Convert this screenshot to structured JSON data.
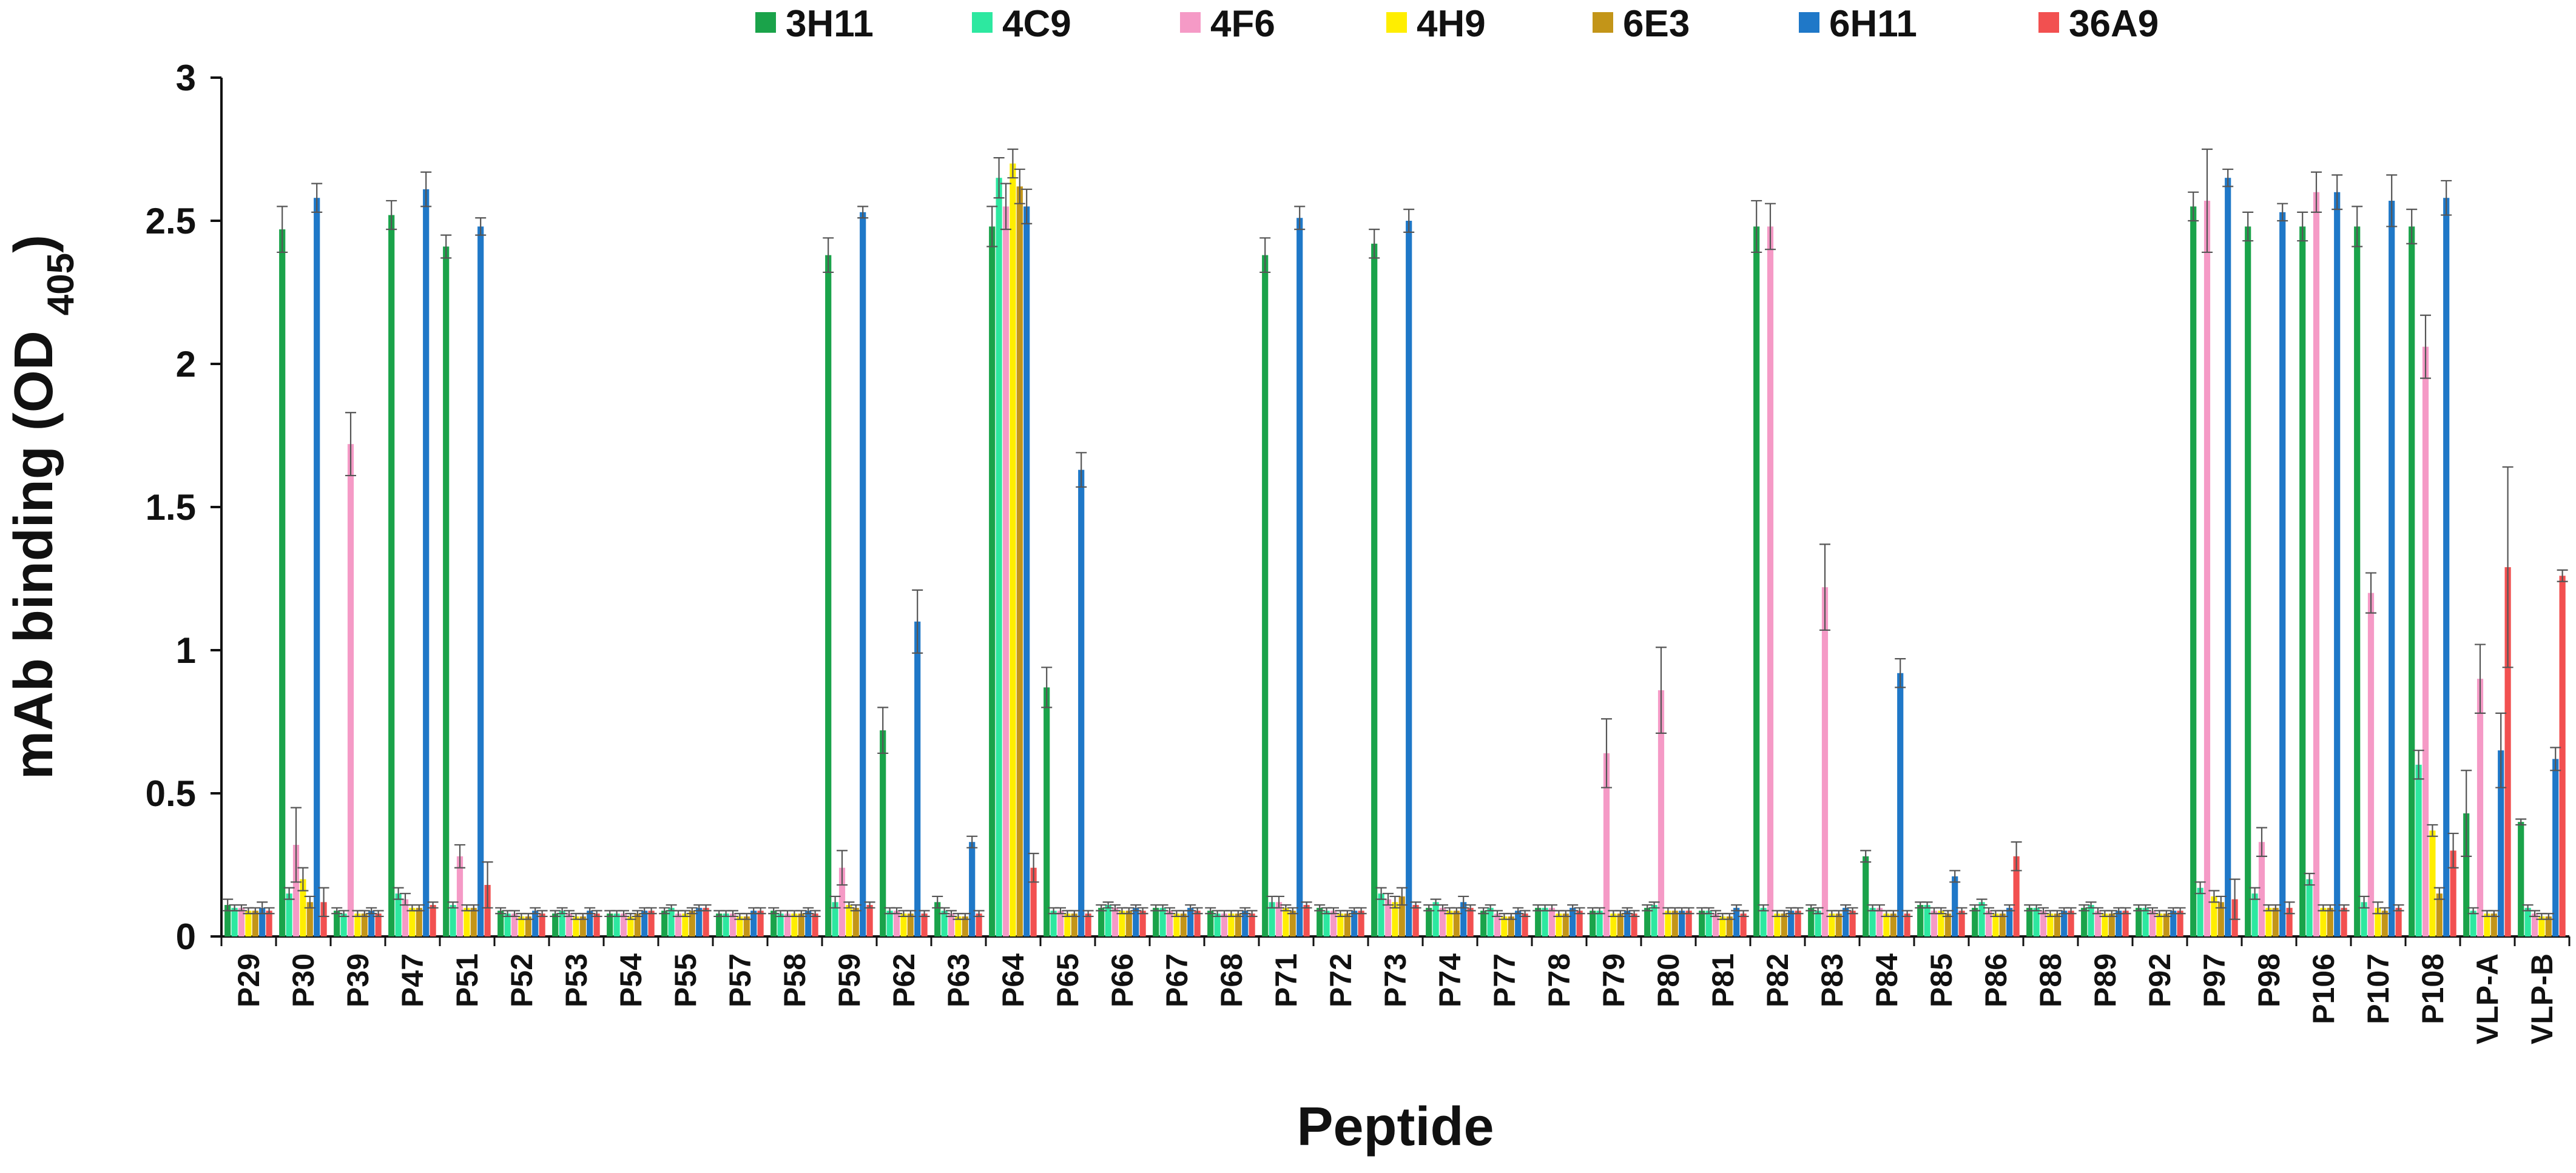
{
  "chart_data": {
    "type": "bar",
    "title": "",
    "xlabel": "Peptide",
    "ylabel": "mAb binding (OD 405)",
    "ylabel_main": "mAb binding (OD",
    "ylabel_sub": "405",
    "ylabel_close": ")",
    "ylim": [
      0,
      3
    ],
    "yticks": [
      0,
      0.5,
      1,
      1.5,
      2,
      2.5,
      3
    ],
    "ytick_labels": [
      "0",
      "0.5",
      "1",
      "1.5",
      "2",
      "2.5",
      "3"
    ],
    "grid": false,
    "legend_position": "top",
    "categories": [
      "P29",
      "P30",
      "P39",
      "P47",
      "P51",
      "P52",
      "P53",
      "P54",
      "P55",
      "P57",
      "P58",
      "P59",
      "P62",
      "P63",
      "P64",
      "P65",
      "P66",
      "P67",
      "P68",
      "P71",
      "P72",
      "P73",
      "P74",
      "P77",
      "P78",
      "P79",
      "P80",
      "P81",
      "P82",
      "P83",
      "P84",
      "P85",
      "P86",
      "P88",
      "P89",
      "P92",
      "P97",
      "P98",
      "P106",
      "P107",
      "P108",
      "VLP-A",
      "VLP-B"
    ],
    "series": [
      {
        "name": "3H11",
        "color": "#1aa34a",
        "values": [
          0.11,
          2.47,
          0.09,
          2.52,
          2.41,
          0.09,
          0.08,
          0.08,
          0.09,
          0.08,
          0.09,
          2.38,
          0.72,
          0.12,
          2.48,
          0.87,
          0.1,
          0.1,
          0.09,
          2.38,
          0.1,
          2.42,
          0.1,
          0.09,
          0.1,
          0.09,
          0.1,
          0.09,
          2.48,
          0.1,
          0.28,
          0.11,
          0.1,
          0.1,
          0.1,
          0.1,
          2.55,
          2.48,
          2.48,
          2.48,
          2.48,
          0.43,
          0.4
        ],
        "errors": [
          0.02,
          0.08,
          0.01,
          0.05,
          0.04,
          0.01,
          0.01,
          0.01,
          0.01,
          0.01,
          0.01,
          0.06,
          0.08,
          0.02,
          0.07,
          0.07,
          0.01,
          0.01,
          0.01,
          0.06,
          0.01,
          0.05,
          0.01,
          0.01,
          0.01,
          0.01,
          0.01,
          0.01,
          0.09,
          0.01,
          0.02,
          0.01,
          0.01,
          0.01,
          0.01,
          0.01,
          0.05,
          0.05,
          0.05,
          0.07,
          0.06,
          0.15,
          0.01
        ]
      },
      {
        "name": "4C9",
        "color": "#2de8a0",
        "values": [
          0.1,
          0.15,
          0.08,
          0.15,
          0.11,
          0.08,
          0.09,
          0.08,
          0.1,
          0.08,
          0.08,
          0.12,
          0.09,
          0.09,
          2.65,
          0.09,
          0.11,
          0.1,
          0.08,
          0.12,
          0.09,
          0.15,
          0.12,
          0.1,
          0.1,
          0.09,
          0.11,
          0.09,
          0.1,
          0.09,
          0.1,
          0.11,
          0.12,
          0.1,
          0.11,
          0.1,
          0.17,
          0.15,
          0.2,
          0.12,
          0.6,
          0.09,
          0.1
        ],
        "errors": [
          0.01,
          0.02,
          0.01,
          0.02,
          0.01,
          0.01,
          0.01,
          0.01,
          0.01,
          0.01,
          0.01,
          0.02,
          0.01,
          0.01,
          0.07,
          0.01,
          0.01,
          0.01,
          0.01,
          0.02,
          0.01,
          0.02,
          0.01,
          0.01,
          0.01,
          0.01,
          0.01,
          0.01,
          0.01,
          0.01,
          0.01,
          0.01,
          0.01,
          0.01,
          0.01,
          0.01,
          0.02,
          0.02,
          0.02,
          0.02,
          0.05,
          0.01,
          0.01
        ]
      },
      {
        "name": "4F6",
        "color": "#f59ac6",
        "values": [
          0.1,
          0.32,
          1.72,
          0.13,
          0.28,
          0.08,
          0.08,
          0.08,
          0.08,
          0.08,
          0.08,
          0.24,
          0.09,
          0.08,
          2.55,
          0.09,
          0.1,
          0.09,
          0.08,
          0.12,
          0.09,
          0.13,
          0.1,
          0.08,
          0.1,
          0.64,
          0.86,
          0.08,
          2.48,
          1.22,
          0.1,
          0.09,
          0.09,
          0.09,
          0.09,
          0.09,
          2.57,
          0.33,
          2.6,
          1.2,
          2.06,
          0.9,
          0.08
        ],
        "errors": [
          0.01,
          0.13,
          0.11,
          0.02,
          0.04,
          0.01,
          0.01,
          0.01,
          0.01,
          0.01,
          0.01,
          0.06,
          0.01,
          0.01,
          0.08,
          0.01,
          0.01,
          0.01,
          0.01,
          0.02,
          0.01,
          0.02,
          0.01,
          0.01,
          0.01,
          0.12,
          0.15,
          0.01,
          0.08,
          0.15,
          0.01,
          0.01,
          0.01,
          0.01,
          0.01,
          0.01,
          0.18,
          0.05,
          0.07,
          0.07,
          0.11,
          0.12,
          0.01
        ]
      },
      {
        "name": "4H9",
        "color": "#ffee00",
        "values": [
          0.09,
          0.2,
          0.08,
          0.1,
          0.1,
          0.07,
          0.07,
          0.07,
          0.08,
          0.07,
          0.08,
          0.11,
          0.08,
          0.07,
          2.7,
          0.08,
          0.09,
          0.08,
          0.08,
          0.1,
          0.08,
          0.12,
          0.09,
          0.07,
          0.08,
          0.08,
          0.09,
          0.07,
          0.08,
          0.08,
          0.08,
          0.09,
          0.08,
          0.08,
          0.08,
          0.08,
          0.14,
          0.1,
          0.1,
          0.1,
          0.37,
          0.08,
          0.07
        ],
        "errors": [
          0.01,
          0.04,
          0.01,
          0.01,
          0.01,
          0.01,
          0.01,
          0.01,
          0.01,
          0.01,
          0.01,
          0.01,
          0.01,
          0.01,
          0.05,
          0.01,
          0.01,
          0.01,
          0.01,
          0.01,
          0.01,
          0.02,
          0.01,
          0.01,
          0.01,
          0.01,
          0.01,
          0.01,
          0.01,
          0.01,
          0.01,
          0.01,
          0.01,
          0.01,
          0.01,
          0.01,
          0.02,
          0.01,
          0.01,
          0.02,
          0.02,
          0.01,
          0.01
        ]
      },
      {
        "name": "6E3",
        "color": "#c39518",
        "values": [
          0.09,
          0.12,
          0.08,
          0.1,
          0.1,
          0.07,
          0.07,
          0.08,
          0.09,
          0.07,
          0.08,
          0.1,
          0.08,
          0.07,
          2.62,
          0.08,
          0.09,
          0.08,
          0.08,
          0.09,
          0.08,
          0.14,
          0.09,
          0.07,
          0.08,
          0.08,
          0.09,
          0.07,
          0.08,
          0.08,
          0.08,
          0.08,
          0.08,
          0.08,
          0.08,
          0.08,
          0.12,
          0.1,
          0.1,
          0.09,
          0.15,
          0.08,
          0.07
        ],
        "errors": [
          0.01,
          0.02,
          0.01,
          0.01,
          0.01,
          0.01,
          0.01,
          0.01,
          0.01,
          0.01,
          0.01,
          0.01,
          0.01,
          0.01,
          0.06,
          0.01,
          0.01,
          0.01,
          0.01,
          0.01,
          0.01,
          0.03,
          0.01,
          0.01,
          0.01,
          0.01,
          0.01,
          0.01,
          0.01,
          0.01,
          0.01,
          0.01,
          0.01,
          0.01,
          0.01,
          0.01,
          0.02,
          0.01,
          0.01,
          0.01,
          0.02,
          0.01,
          0.01
        ]
      },
      {
        "name": "6H11",
        "color": "#1f78c8",
        "values": [
          0.1,
          2.58,
          0.09,
          2.61,
          2.48,
          0.09,
          0.09,
          0.09,
          0.1,
          0.09,
          0.09,
          2.53,
          1.1,
          0.33,
          2.55,
          1.63,
          0.1,
          0.1,
          0.09,
          2.51,
          0.09,
          2.5,
          0.12,
          0.09,
          0.1,
          0.09,
          0.09,
          0.1,
          0.09,
          0.1,
          0.92,
          0.21,
          0.1,
          0.09,
          0.09,
          0.09,
          2.65,
          2.53,
          2.6,
          2.57,
          2.58,
          0.65,
          0.62
        ],
        "errors": [
          0.02,
          0.05,
          0.01,
          0.06,
          0.03,
          0.01,
          0.01,
          0.01,
          0.01,
          0.01,
          0.01,
          0.02,
          0.11,
          0.02,
          0.06,
          0.06,
          0.01,
          0.01,
          0.01,
          0.04,
          0.01,
          0.04,
          0.02,
          0.01,
          0.01,
          0.01,
          0.01,
          0.01,
          0.01,
          0.01,
          0.05,
          0.02,
          0.01,
          0.01,
          0.01,
          0.01,
          0.03,
          0.03,
          0.06,
          0.09,
          0.06,
          0.13,
          0.04
        ]
      },
      {
        "name": "36A9",
        "color": "#f25050",
        "values": [
          0.09,
          0.12,
          0.08,
          0.11,
          0.18,
          0.08,
          0.08,
          0.09,
          0.1,
          0.09,
          0.08,
          0.11,
          0.08,
          0.08,
          0.24,
          0.08,
          0.09,
          0.09,
          0.08,
          0.11,
          0.09,
          0.11,
          0.1,
          0.08,
          0.09,
          0.08,
          0.09,
          0.08,
          0.09,
          0.09,
          0.08,
          0.09,
          0.28,
          0.09,
          0.09,
          0.09,
          0.13,
          0.1,
          0.1,
          0.1,
          0.3,
          1.29,
          1.26
        ],
        "errors": [
          0.01,
          0.05,
          0.01,
          0.01,
          0.08,
          0.01,
          0.01,
          0.01,
          0.01,
          0.01,
          0.01,
          0.01,
          0.01,
          0.01,
          0.05,
          0.01,
          0.01,
          0.01,
          0.01,
          0.01,
          0.01,
          0.01,
          0.01,
          0.01,
          0.01,
          0.01,
          0.01,
          0.01,
          0.01,
          0.01,
          0.01,
          0.01,
          0.05,
          0.01,
          0.01,
          0.01,
          0.07,
          0.02,
          0.01,
          0.01,
          0.06,
          0.35,
          0.02
        ]
      }
    ]
  }
}
